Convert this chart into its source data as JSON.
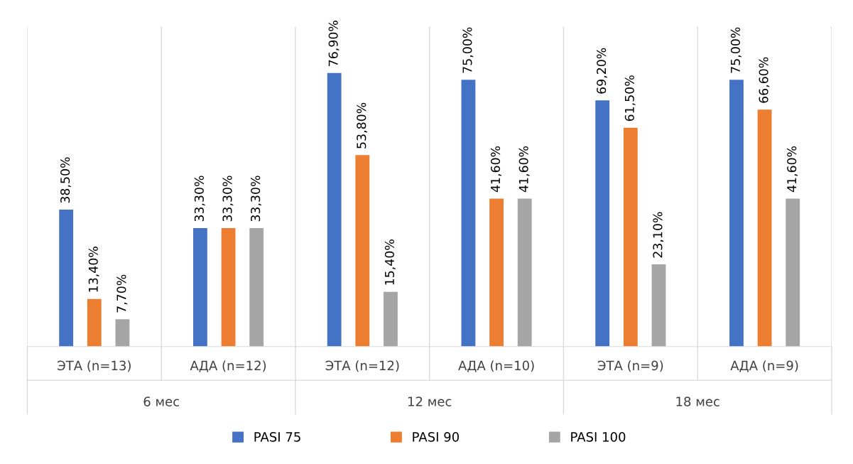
{
  "chart_data": {
    "type": "bar",
    "categories": [
      "ЭТА (n=13)",
      "АДА (n=12)",
      "ЭТА (n=12)",
      "АДА (n=10)",
      "ЭТА (n=9)",
      "АДА (n=9)"
    ],
    "series": [
      {
        "name": "PASI 75",
        "color": "#4472c4",
        "values": [
          38.5,
          33.3,
          76.9,
          75.0,
          69.2,
          75.0
        ],
        "value_labels": [
          "38,50%",
          "33,30%",
          "76,90%",
          "75,00%",
          "69,20%",
          "75,00%"
        ]
      },
      {
        "name": "PASI 90",
        "color": "#ed7d31",
        "values": [
          13.4,
          33.3,
          53.8,
          41.6,
          61.5,
          66.6
        ],
        "value_labels": [
          "13,40%",
          "33,30%",
          "53,80%",
          "41,60%",
          "61,50%",
          "66,60%"
        ]
      },
      {
        "name": "PASI 100",
        "color": "#a5a5a5",
        "values": [
          7.7,
          33.3,
          15.4,
          41.6,
          23.1,
          41.6
        ],
        "value_labels": [
          "7,70%",
          "33,30%",
          "15,40%",
          "41,60%",
          "23,10%",
          "41,60%"
        ]
      }
    ],
    "annotations": [
      "6 мес",
      "12 мес",
      "18 мес"
    ],
    "grid": "x",
    "legend": "bottom"
  }
}
